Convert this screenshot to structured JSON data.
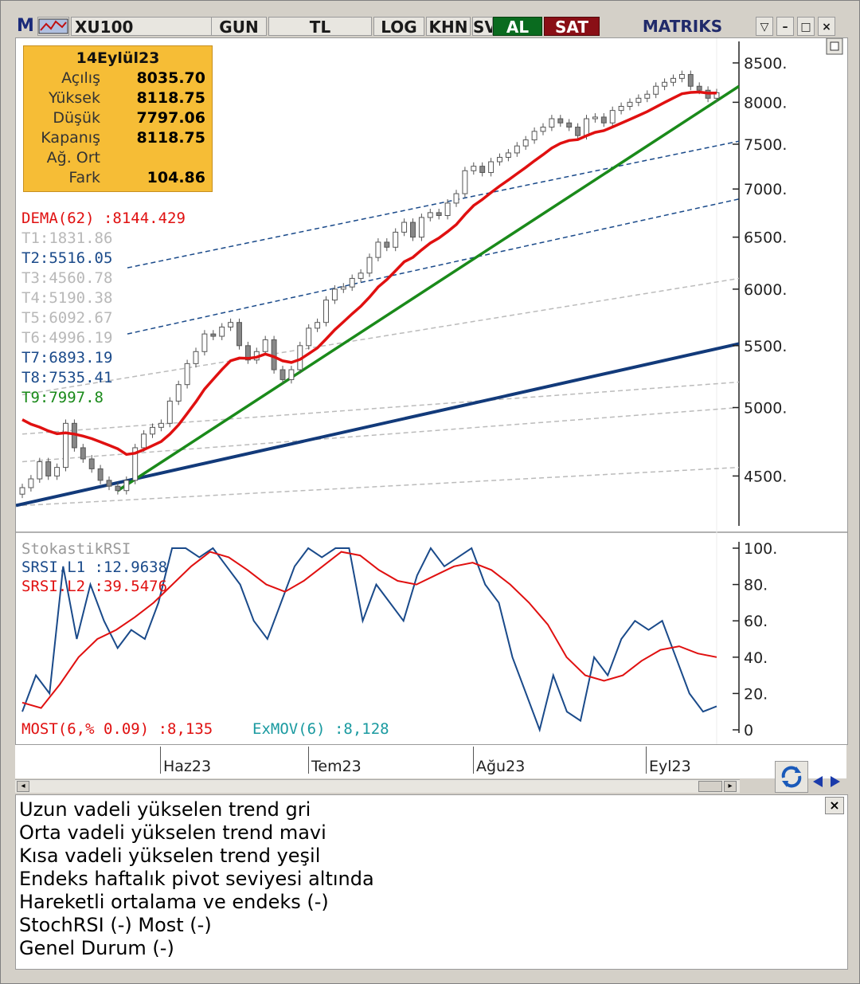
{
  "toolbar": {
    "m_label": "M",
    "symbol": "XU100",
    "period": "GUN",
    "currency": "TL",
    "log": "LOG",
    "khn": "KHN",
    "sv": "SV",
    "buy": "AL",
    "sell": "SAT",
    "brand": "MATRIKS"
  },
  "infobox": {
    "date": "14Eylül23",
    "rows": [
      {
        "label": "Açılış",
        "value": "8035.70"
      },
      {
        "label": "Yüksek",
        "value": "8118.75"
      },
      {
        "label": "Düşük",
        "value": "7797.06"
      },
      {
        "label": "Kapanış",
        "value": "8118.75"
      },
      {
        "label": "Ağ. Ort",
        "value": ""
      },
      {
        "label": "Fark",
        "value": "104.86"
      }
    ]
  },
  "indicators": {
    "dema": "DEMA(62)   :8144.429",
    "t1": "T1:1831.86",
    "t2": "T2:5516.05",
    "t3": "T3:4560.78",
    "t4": "T4:5190.38",
    "t5": "T5:6092.67",
    "t6": "T6:4996.19",
    "t7": "T7:6893.19",
    "t8": "T8:7535.41",
    "t9": "T9:7997.8",
    "srsi_title": "StokastikRSI",
    "srsi_l1": "SRSI.L1     :12.9638",
    "srsi_l2": "SRSI.L2     :39.5476",
    "most": "MOST(6,% 0.09) :8,135",
    "exmov": "ExMOV(6)     :8,128"
  },
  "colors": {
    "up_candle": "#ffffff",
    "down_candle": "#888888",
    "dema": "#e01010",
    "short_trend": "#1a8a1a",
    "mid_trend": "#123a7a",
    "srsi_l1": "#1a4a8a",
    "srsi_l2": "#e01010",
    "buy": "#0a6b1f",
    "sell": "#8a0f16",
    "panel": "#f6bd36"
  },
  "xaxis": {
    "labels": [
      "Haz23",
      "Tem23",
      "Ağu23",
      "Eyl23"
    ]
  },
  "commentary": [
    "Uzun vadeli yükselen trend gri",
    "Orta vadeli yükselen trend mavi",
    "Kısa vadeli yükselen trend yeşil",
    "Endeks haftalık pivot seviyesi altında",
    "Hareketli ortalama ve endeks (-)",
    "StochRSI (-) Most (-)",
    "Genel Durum (-)"
  ],
  "chart_data": [
    {
      "type": "candlestick",
      "title": "XU100",
      "y_scale": "log",
      "ylim": [
        4250,
        8700
      ],
      "y_ticks": [
        "8500.",
        "8000.",
        "7500.",
        "7000.",
        "6500.",
        "6000.",
        "5500.",
        "5000.",
        "4500."
      ],
      "x_ticks": [
        "Haz23",
        "Tem23",
        "Ağu23",
        "Eyl23"
      ],
      "close_series": [
        4420,
        4480,
        4600,
        4500,
        4560,
        4880,
        4700,
        4620,
        4550,
        4470,
        4430,
        4400,
        4470,
        4700,
        4800,
        4850,
        4880,
        5050,
        5180,
        5350,
        5450,
        5600,
        5580,
        5660,
        5700,
        5500,
        5380,
        5450,
        5550,
        5300,
        5220,
        5300,
        5500,
        5650,
        5700,
        5900,
        6000,
        6020,
        6100,
        6150,
        6300,
        6450,
        6400,
        6550,
        6650,
        6500,
        6700,
        6750,
        6720,
        6850,
        6950,
        7200,
        7250,
        7180,
        7300,
        7350,
        7400,
        7480,
        7550,
        7650,
        7700,
        7800,
        7750,
        7700,
        7600,
        7800,
        7820,
        7750,
        7900,
        7950,
        8000,
        8050,
        8100,
        8200,
        8250,
        8300,
        8350,
        8200,
        8150,
        8050,
        8119
      ],
      "series": [
        {
          "name": "DEMA(62)",
          "last": 8144.429
        },
        {
          "name": "T9",
          "last": 7997.8
        }
      ]
    },
    {
      "type": "line",
      "title": "StokastikRSI",
      "ylim": [
        0,
        100
      ],
      "y_ticks": [
        "100.",
        "80.",
        "60.",
        "40.",
        "20.",
        "0"
      ],
      "series": [
        {
          "name": "SRSI.L1",
          "values": [
            10,
            30,
            20,
            90,
            50,
            80,
            60,
            45,
            55,
            50,
            70,
            100,
            100,
            95,
            100,
            90,
            80,
            60,
            50,
            70,
            90,
            100,
            95,
            100,
            100,
            60,
            80,
            70,
            60,
            85,
            100,
            90,
            95,
            100,
            80,
            70,
            40,
            20,
            0,
            30,
            10,
            5,
            40,
            30,
            50,
            60,
            55,
            60,
            40,
            20,
            10,
            13
          ]
        },
        {
          "name": "SRSI.L2",
          "values": [
            15,
            12,
            25,
            40,
            50,
            55,
            62,
            70,
            80,
            90,
            98,
            95,
            88,
            80,
            76,
            82,
            90,
            98,
            96,
            88,
            82,
            80,
            85,
            90,
            92,
            88,
            80,
            70,
            58,
            40,
            30,
            27,
            30,
            38,
            44,
            46,
            42,
            40
          ]
        }
      ]
    }
  ]
}
